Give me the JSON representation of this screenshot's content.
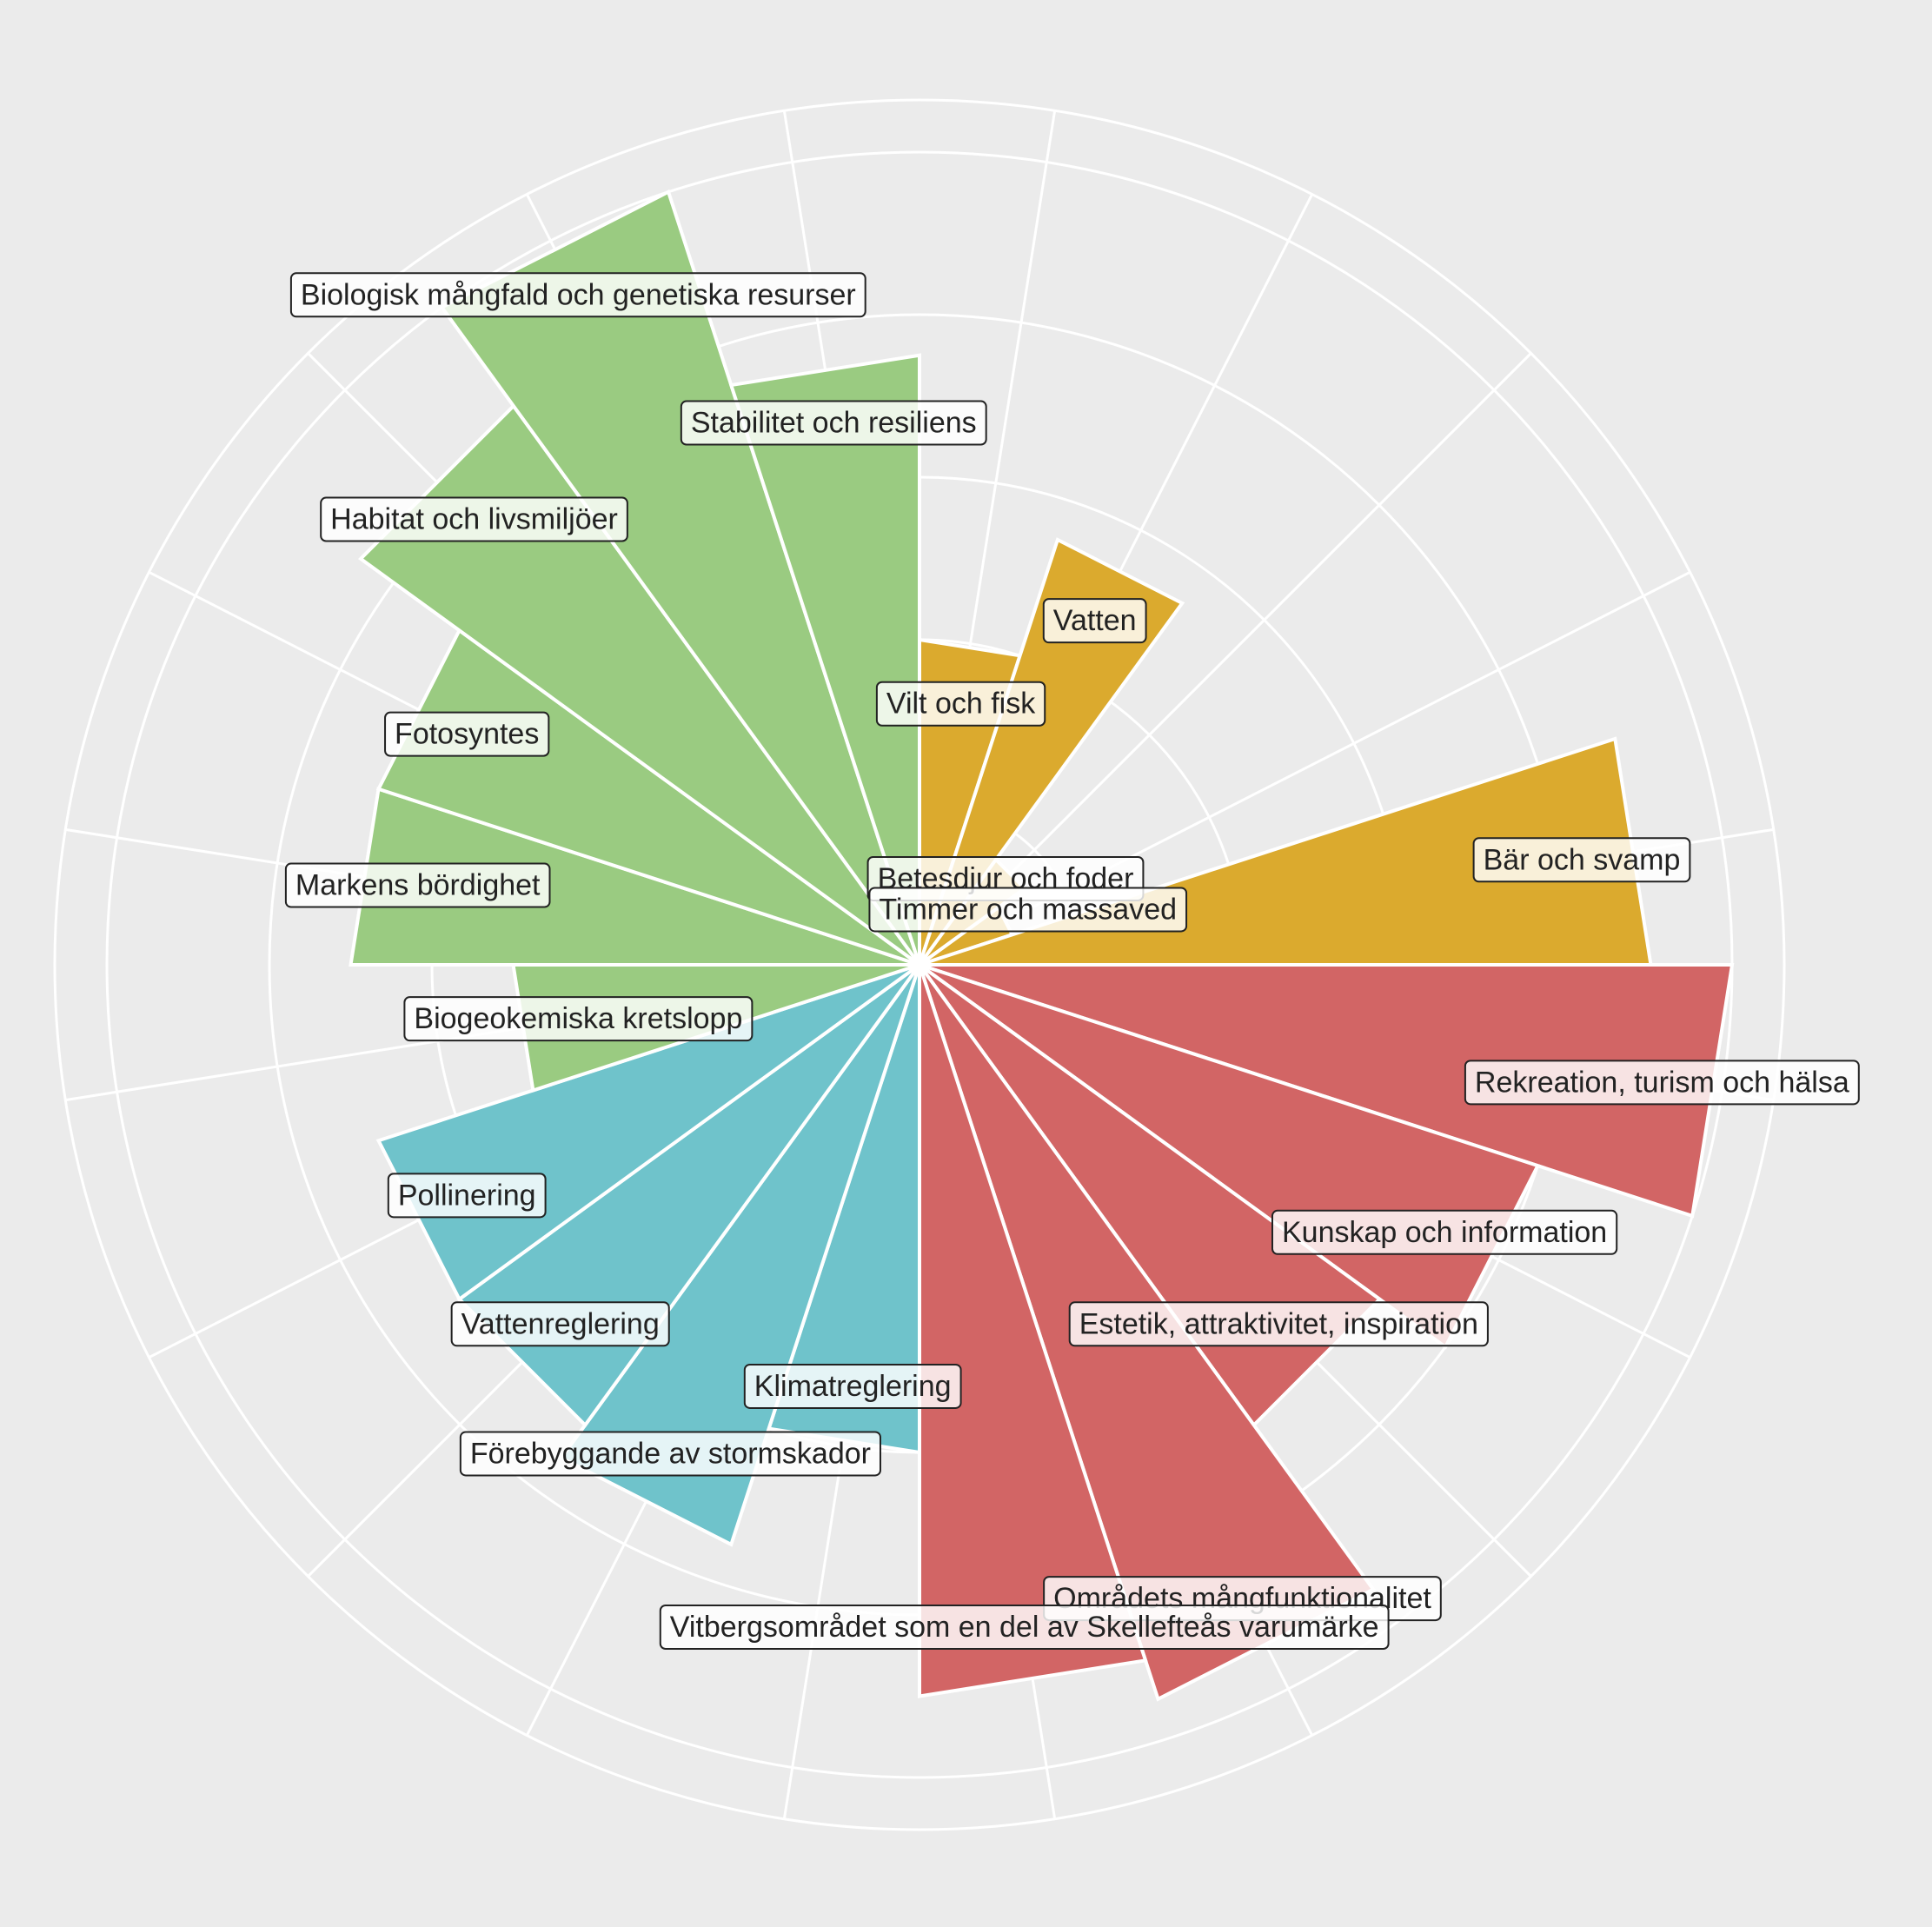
{
  "chart_data": {
    "type": "polar-bar",
    "title": "",
    "radial_max": 5,
    "radial_grid": [
      1,
      2,
      3,
      4,
      5
    ],
    "grid": true,
    "legend": "none",
    "categories": [
      {
        "label": "Vilt och fisk",
        "value": 2.0,
        "group": "provisioning"
      },
      {
        "label": "Vatten",
        "value": 2.75,
        "group": "provisioning"
      },
      {
        "label": "Betesdjur och foder",
        "value": 0.8,
        "group": "provisioning"
      },
      {
        "label": "Timmer och massaved",
        "value": 0.6,
        "group": "provisioning"
      },
      {
        "label": "Bär och svamp",
        "value": 4.5,
        "group": "provisioning"
      },
      {
        "label": "Rekreation, turism och hälsa",
        "value": 5.0,
        "group": "cultural"
      },
      {
        "label": "Kunskap och information",
        "value": 4.0,
        "group": "cultural"
      },
      {
        "label": "Estetik, attraktivitet, inspiration",
        "value": 3.5,
        "group": "cultural"
      },
      {
        "label": "Områdets mångfunktionalitet",
        "value": 4.75,
        "group": "cultural"
      },
      {
        "label": "Vitbergsområdet som en del av Skellefteås varumärke",
        "value": 4.5,
        "group": "cultural"
      },
      {
        "label": "Klimatreglering",
        "value": 3.0,
        "group": "regulating"
      },
      {
        "label": "Förebyggande av stormskador",
        "value": 3.75,
        "group": "regulating"
      },
      {
        "label": "Vattenreglering",
        "value": 3.5,
        "group": "regulating"
      },
      {
        "label": "Pollinering",
        "value": 3.5,
        "group": "regulating"
      },
      {
        "label": "Biogeokemiska kretslopp",
        "value": 2.5,
        "group": "supporting"
      },
      {
        "label": "Markens bördighet",
        "value": 3.5,
        "group": "supporting"
      },
      {
        "label": "Fotosyntes",
        "value": 3.5,
        "group": "supporting"
      },
      {
        "label": "Habitat och livsmiljöer",
        "value": 4.25,
        "group": "supporting"
      },
      {
        "label": "Biologisk mångfald och genetiska resurser",
        "value": 5.0,
        "group": "supporting"
      },
      {
        "label": "Stabilitet och resiliens",
        "value": 3.75,
        "group": "supporting"
      }
    ],
    "group_colors": {
      "provisioning": "#dbaa2e",
      "cultural": "#d26565",
      "regulating": "#6fc3cb",
      "supporting": "#9acb81"
    }
  },
  "colors": {
    "background": "#ebebeb",
    "grid": "#ffffff",
    "text": "#222222"
  }
}
